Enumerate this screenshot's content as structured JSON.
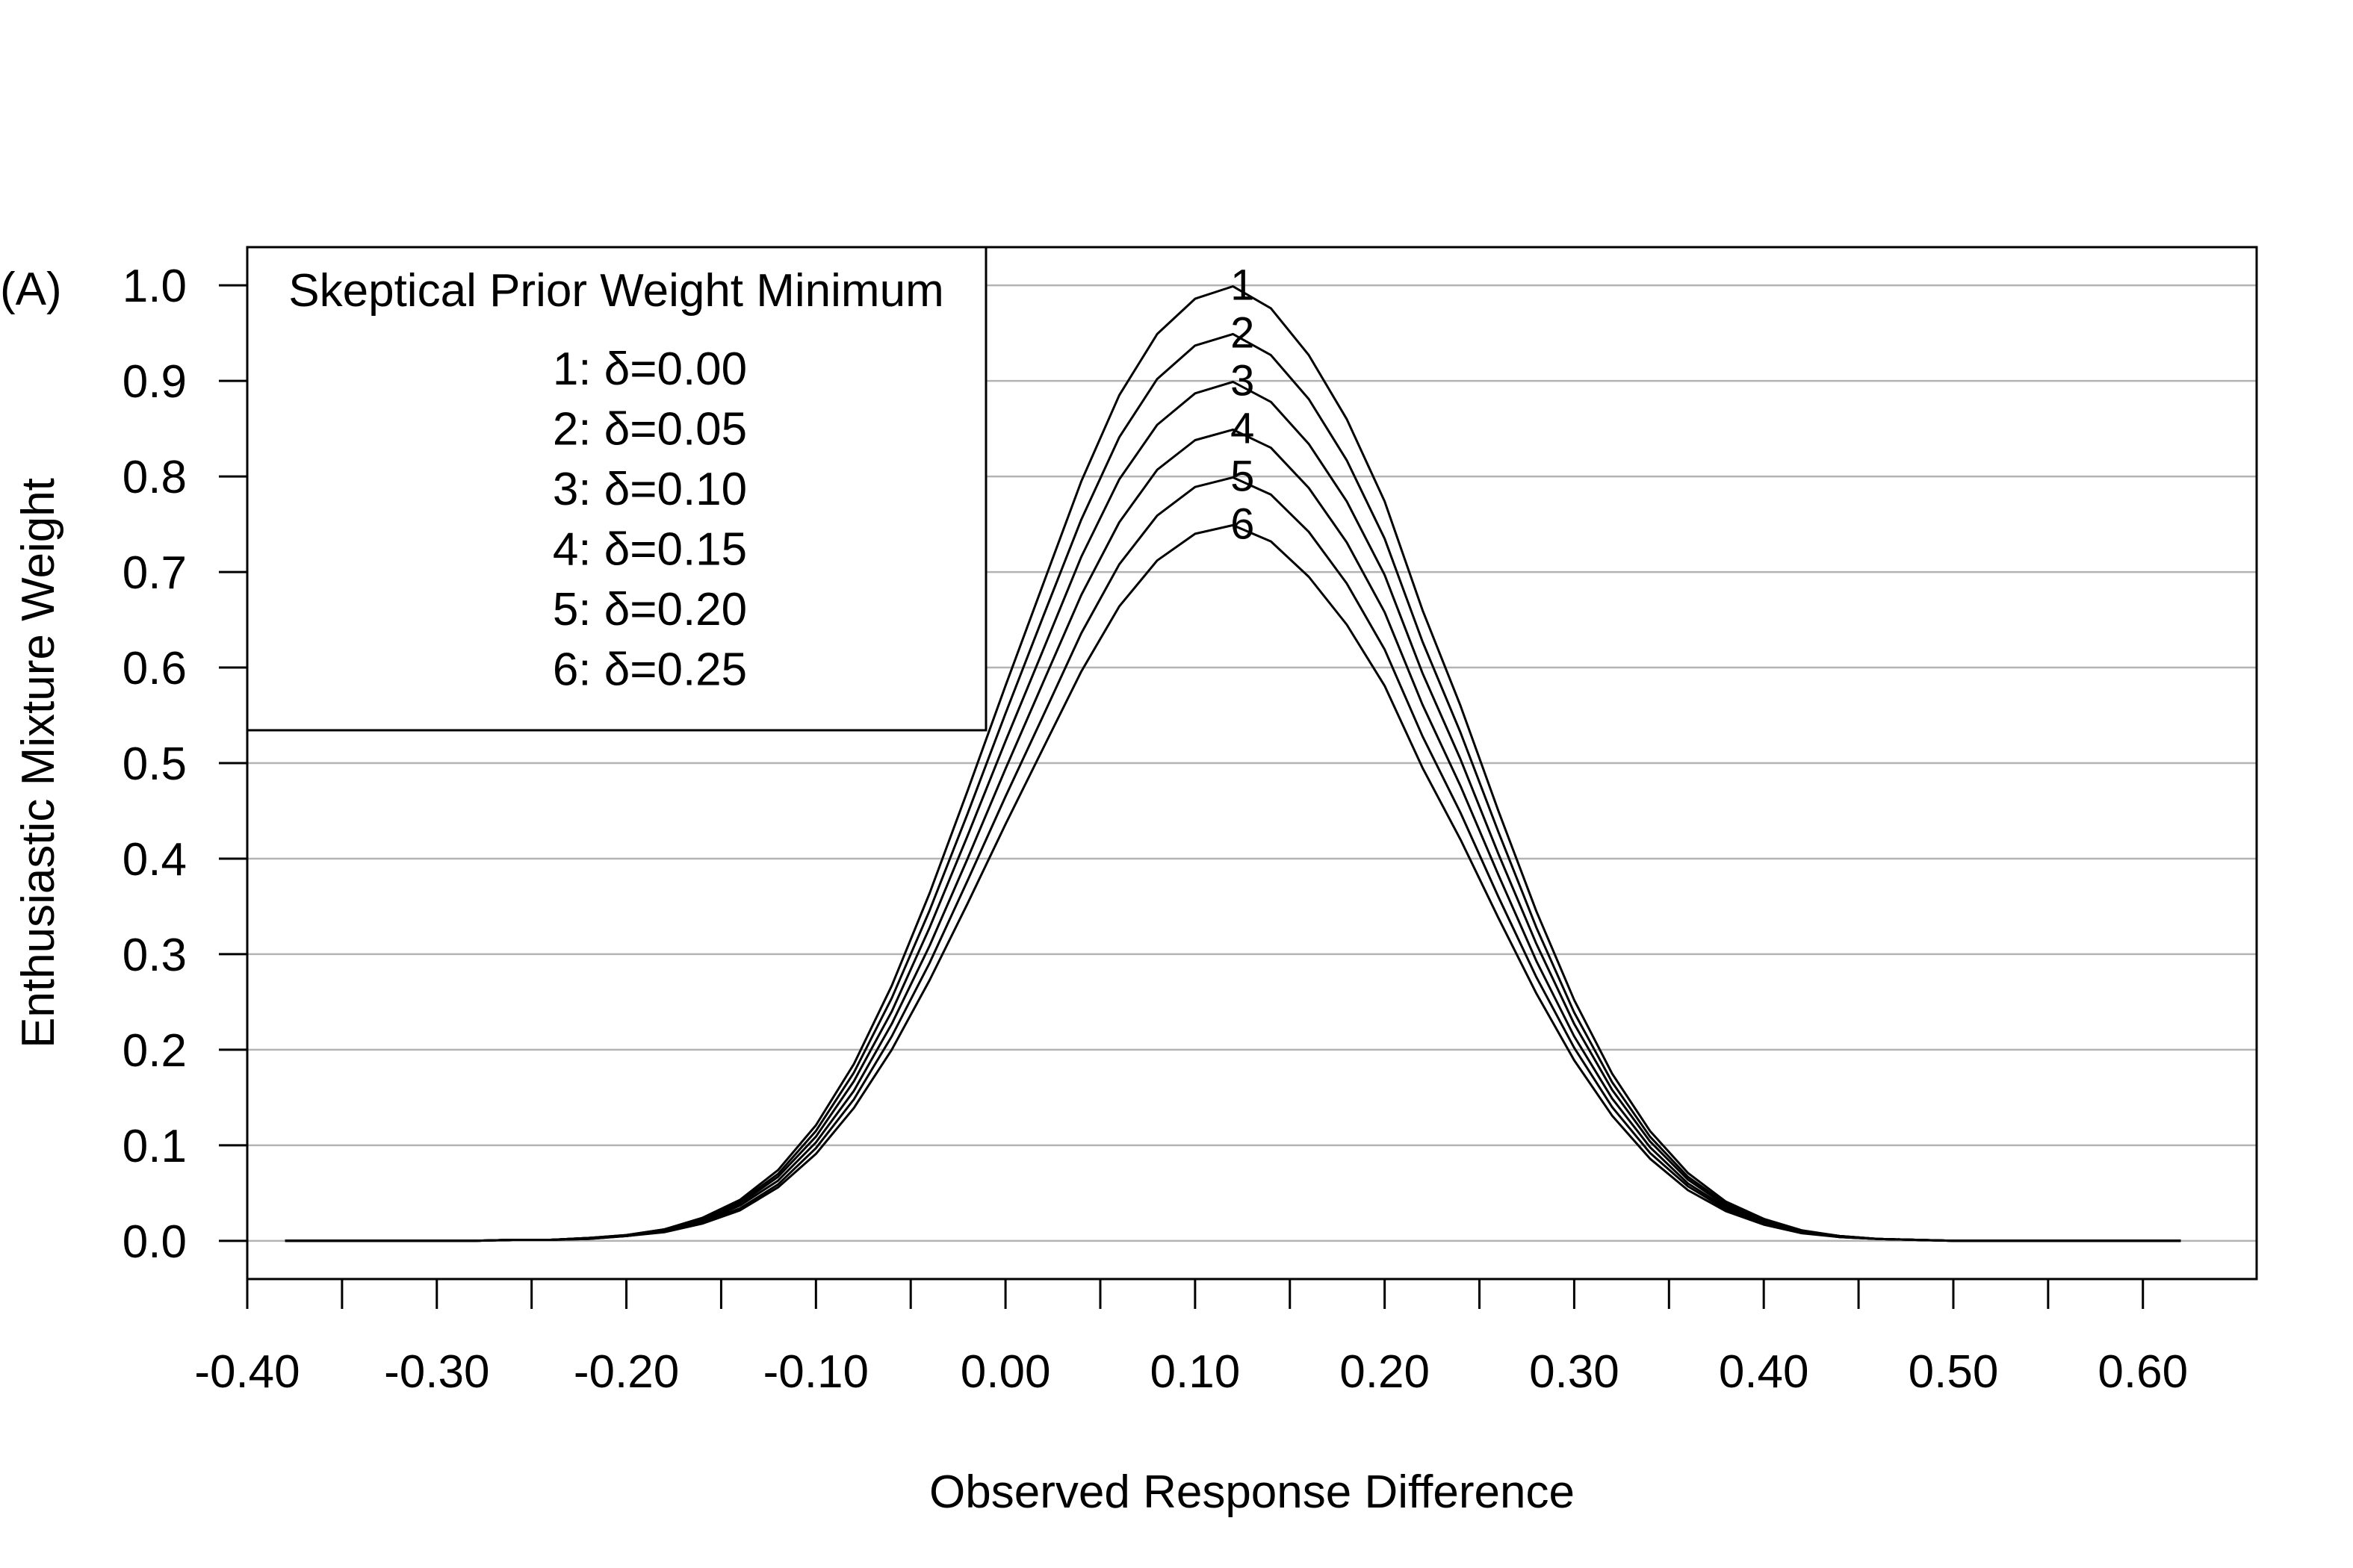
{
  "chart_data": {
    "type": "line",
    "panel_label": "(A)",
    "xlabel": "Observed Response Difference",
    "ylabel": "Enthusiastic Mixture Weight",
    "xlim": [
      -0.4,
      0.66
    ],
    "ylim": [
      -0.04,
      1.04
    ],
    "x_ticks": [
      -0.4,
      -0.35,
      -0.3,
      -0.25,
      -0.2,
      -0.15,
      -0.1,
      -0.05,
      0.0,
      0.05,
      0.1,
      0.15,
      0.2,
      0.25,
      0.3,
      0.35,
      0.4,
      0.45,
      0.5,
      0.55,
      0.6
    ],
    "x_tick_labels": [
      "-0.40",
      "",
      "-0.30",
      "",
      "-0.20",
      "",
      "-0.10",
      "",
      "0.00",
      "",
      "0.10",
      "",
      "0.20",
      "",
      "0.30",
      "",
      "0.40",
      "",
      "0.50",
      "",
      "0.60"
    ],
    "y_ticks": [
      0.0,
      0.1,
      0.2,
      0.3,
      0.4,
      0.5,
      0.6,
      0.7,
      0.8,
      0.9,
      1.0
    ],
    "y_tick_labels": [
      "0.0",
      "0.1",
      "0.2",
      "0.3",
      "0.4",
      "0.5",
      "0.6",
      "0.7",
      "0.8",
      "0.9",
      "1.0"
    ],
    "grid": "horizontal",
    "legend": {
      "title": "Skeptical Prior Weight Minimum",
      "position": "top-left",
      "entries": [
        "1: δ=0.00",
        "2: δ=0.05",
        "3: δ=0.10",
        "4: δ=0.15",
        "5: δ=0.20",
        "6: δ=0.25"
      ]
    },
    "curve_peak_x": 0.125,
    "x": [
      -0.38,
      -0.36,
      -0.34,
      -0.32,
      -0.3,
      -0.28,
      -0.26,
      -0.24,
      -0.22,
      -0.2,
      -0.18,
      -0.16,
      -0.14,
      -0.12,
      -0.1,
      -0.08,
      -0.06,
      -0.04,
      -0.02,
      0.0,
      0.02,
      0.04,
      0.06,
      0.08,
      0.1,
      0.12,
      0.14,
      0.16,
      0.18,
      0.2,
      0.22,
      0.24,
      0.26,
      0.28,
      0.3,
      0.32,
      0.34,
      0.36,
      0.38,
      0.4,
      0.42,
      0.44,
      0.46,
      0.48,
      0.5,
      0.52,
      0.54,
      0.56,
      0.58,
      0.6,
      0.62
    ],
    "series": [
      {
        "label": "1",
        "values": [
          0.0,
          0.0,
          0.0,
          0.0,
          0.0,
          0.0,
          0.001,
          0.001,
          0.003,
          0.006,
          0.012,
          0.024,
          0.043,
          0.074,
          0.121,
          0.185,
          0.267,
          0.364,
          0.471,
          0.581,
          0.688,
          0.795,
          0.885,
          0.949,
          0.986,
          0.999,
          0.976,
          0.927,
          0.86,
          0.774,
          0.66,
          0.56,
          0.45,
          0.345,
          0.252,
          0.175,
          0.115,
          0.071,
          0.041,
          0.023,
          0.011,
          0.005,
          0.002,
          0.001,
          0.0,
          0.0,
          0.0,
          0.0,
          0.0,
          0.0,
          0.0
        ]
      },
      {
        "label": "2",
        "values": [
          0.0,
          0.0,
          0.0,
          0.0,
          0.0,
          0.0,
          0.001,
          0.001,
          0.003,
          0.006,
          0.012,
          0.023,
          0.041,
          0.07,
          0.115,
          0.176,
          0.254,
          0.346,
          0.447,
          0.552,
          0.654,
          0.755,
          0.841,
          0.902,
          0.937,
          0.949,
          0.927,
          0.881,
          0.817,
          0.735,
          0.627,
          0.532,
          0.428,
          0.328,
          0.239,
          0.166,
          0.109,
          0.067,
          0.039,
          0.022,
          0.01,
          0.005,
          0.002,
          0.001,
          0.0,
          0.0,
          0.0,
          0.0,
          0.0,
          0.0,
          0.0
        ]
      },
      {
        "label": "3",
        "values": [
          0.0,
          0.0,
          0.0,
          0.0,
          0.0,
          0.0,
          0.001,
          0.001,
          0.003,
          0.005,
          0.011,
          0.022,
          0.039,
          0.067,
          0.109,
          0.167,
          0.24,
          0.328,
          0.424,
          0.523,
          0.619,
          0.716,
          0.797,
          0.854,
          0.887,
          0.899,
          0.878,
          0.834,
          0.774,
          0.697,
          0.594,
          0.504,
          0.405,
          0.311,
          0.227,
          0.158,
          0.104,
          0.064,
          0.037,
          0.021,
          0.01,
          0.005,
          0.002,
          0.001,
          0.0,
          0.0,
          0.0,
          0.0,
          0.0,
          0.0,
          0.0
        ]
      },
      {
        "label": "4",
        "values": [
          0.0,
          0.0,
          0.0,
          0.0,
          0.0,
          0.0,
          0.001,
          0.001,
          0.003,
          0.005,
          0.01,
          0.02,
          0.037,
          0.063,
          0.103,
          0.157,
          0.227,
          0.309,
          0.4,
          0.494,
          0.585,
          0.676,
          0.752,
          0.807,
          0.838,
          0.849,
          0.83,
          0.788,
          0.731,
          0.658,
          0.561,
          0.476,
          0.383,
          0.293,
          0.214,
          0.149,
          0.098,
          0.06,
          0.035,
          0.02,
          0.009,
          0.004,
          0.002,
          0.001,
          0.0,
          0.0,
          0.0,
          0.0,
          0.0,
          0.0,
          0.0
        ]
      },
      {
        "label": "5",
        "values": [
          0.0,
          0.0,
          0.0,
          0.0,
          0.0,
          0.0,
          0.001,
          0.001,
          0.002,
          0.005,
          0.01,
          0.019,
          0.034,
          0.059,
          0.097,
          0.148,
          0.214,
          0.291,
          0.377,
          0.465,
          0.55,
          0.636,
          0.708,
          0.759,
          0.789,
          0.799,
          0.781,
          0.742,
          0.688,
          0.619,
          0.528,
          0.448,
          0.36,
          0.276,
          0.202,
          0.14,
          0.092,
          0.057,
          0.033,
          0.018,
          0.009,
          0.004,
          0.002,
          0.001,
          0.0,
          0.0,
          0.0,
          0.0,
          0.0,
          0.0,
          0.0
        ]
      },
      {
        "label": "6",
        "values": [
          0.0,
          0.0,
          0.0,
          0.0,
          0.0,
          0.0,
          0.001,
          0.001,
          0.002,
          0.005,
          0.009,
          0.018,
          0.032,
          0.056,
          0.091,
          0.139,
          0.2,
          0.273,
          0.353,
          0.436,
          0.516,
          0.596,
          0.664,
          0.712,
          0.74,
          0.749,
          0.732,
          0.695,
          0.645,
          0.581,
          0.495,
          0.42,
          0.338,
          0.259,
          0.189,
          0.131,
          0.086,
          0.053,
          0.031,
          0.017,
          0.008,
          0.004,
          0.002,
          0.001,
          0.0,
          0.0,
          0.0,
          0.0,
          0.0,
          0.0,
          0.0
        ]
      }
    ]
  }
}
